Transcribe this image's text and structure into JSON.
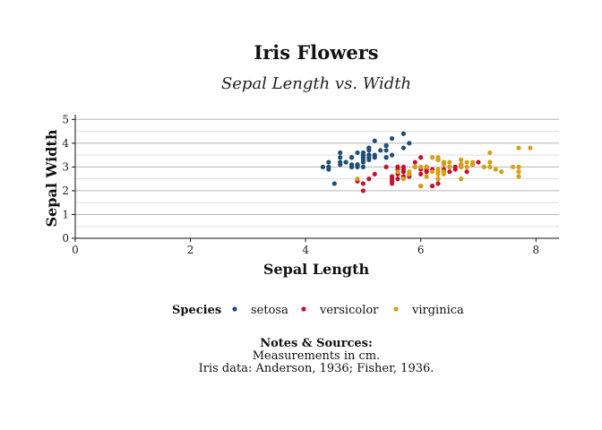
{
  "chart_data": {
    "type": "scatter",
    "title": "Iris Flowers",
    "subtitle": "Sepal Length vs. Width",
    "xlabel": "Sepal Length",
    "ylabel": "Sepal Width",
    "xlim": [
      0,
      8.4
    ],
    "ylim": [
      0,
      5.2
    ],
    "xticks": [
      "0",
      "2",
      "4",
      "6",
      "8"
    ],
    "yticks": [
      "0",
      "1",
      "2",
      "3",
      "4",
      "5"
    ],
    "grid": true,
    "legend_title": "Species",
    "legend_position": "bottom",
    "series": [
      {
        "name": "setosa",
        "color": "#1f4e79",
        "points": [
          [
            5.1,
            3.5
          ],
          [
            4.9,
            3.0
          ],
          [
            4.7,
            3.2
          ],
          [
            4.6,
            3.1
          ],
          [
            5.0,
            3.6
          ],
          [
            5.4,
            3.9
          ],
          [
            4.6,
            3.4
          ],
          [
            5.0,
            3.4
          ],
          [
            4.4,
            2.9
          ],
          [
            4.9,
            3.1
          ],
          [
            5.4,
            3.7
          ],
          [
            4.8,
            3.4
          ],
          [
            4.8,
            3.0
          ],
          [
            4.3,
            3.0
          ],
          [
            5.8,
            4.0
          ],
          [
            5.7,
            4.4
          ],
          [
            5.4,
            3.9
          ],
          [
            5.1,
            3.5
          ],
          [
            5.7,
            3.8
          ],
          [
            5.1,
            3.8
          ],
          [
            5.4,
            3.4
          ],
          [
            5.1,
            3.7
          ],
          [
            4.6,
            3.6
          ],
          [
            5.1,
            3.3
          ],
          [
            4.8,
            3.4
          ],
          [
            5.0,
            3.0
          ],
          [
            5.0,
            3.4
          ],
          [
            5.2,
            3.5
          ],
          [
            5.2,
            3.4
          ],
          [
            4.7,
            3.2
          ],
          [
            4.8,
            3.1
          ],
          [
            5.4,
            3.4
          ],
          [
            5.2,
            4.1
          ],
          [
            5.5,
            4.2
          ],
          [
            4.9,
            3.1
          ],
          [
            5.0,
            3.2
          ],
          [
            5.5,
            3.5
          ],
          [
            4.9,
            3.6
          ],
          [
            4.4,
            3.0
          ],
          [
            5.1,
            3.4
          ],
          [
            5.0,
            3.5
          ],
          [
            4.5,
            2.3
          ],
          [
            4.4,
            3.2
          ],
          [
            5.0,
            3.5
          ],
          [
            5.1,
            3.8
          ],
          [
            4.8,
            3.0
          ],
          [
            5.1,
            3.8
          ],
          [
            4.6,
            3.2
          ],
          [
            5.3,
            3.7
          ],
          [
            5.0,
            3.3
          ]
        ]
      },
      {
        "name": "versicolor",
        "color": "#c8102e",
        "points": [
          [
            7.0,
            3.2
          ],
          [
            6.4,
            3.2
          ],
          [
            6.9,
            3.1
          ],
          [
            5.5,
            2.3
          ],
          [
            6.5,
            2.8
          ],
          [
            5.7,
            2.8
          ],
          [
            6.3,
            3.3
          ],
          [
            4.9,
            2.4
          ],
          [
            6.6,
            2.9
          ],
          [
            5.2,
            2.7
          ],
          [
            5.0,
            2.0
          ],
          [
            5.9,
            3.0
          ],
          [
            6.0,
            2.2
          ],
          [
            6.1,
            2.9
          ],
          [
            5.6,
            2.9
          ],
          [
            6.7,
            3.1
          ],
          [
            5.6,
            3.0
          ],
          [
            5.8,
            2.7
          ],
          [
            6.2,
            2.2
          ],
          [
            5.6,
            2.5
          ],
          [
            5.9,
            3.2
          ],
          [
            6.1,
            2.8
          ],
          [
            6.3,
            2.5
          ],
          [
            6.1,
            2.8
          ],
          [
            6.4,
            2.9
          ],
          [
            6.6,
            3.0
          ],
          [
            6.8,
            2.8
          ],
          [
            6.7,
            3.0
          ],
          [
            6.0,
            2.9
          ],
          [
            5.7,
            2.6
          ],
          [
            5.5,
            2.4
          ],
          [
            5.5,
            2.4
          ],
          [
            5.8,
            2.7
          ],
          [
            6.0,
            2.7
          ],
          [
            5.4,
            3.0
          ],
          [
            6.0,
            3.4
          ],
          [
            6.7,
            3.1
          ],
          [
            6.3,
            2.3
          ],
          [
            5.6,
            3.0
          ],
          [
            5.5,
            2.5
          ],
          [
            5.5,
            2.6
          ],
          [
            6.1,
            3.0
          ],
          [
            5.8,
            2.6
          ],
          [
            5.0,
            2.3
          ],
          [
            5.6,
            2.7
          ],
          [
            5.7,
            3.0
          ],
          [
            5.7,
            2.9
          ],
          [
            6.2,
            2.9
          ],
          [
            5.1,
            2.5
          ],
          [
            5.7,
            2.8
          ]
        ]
      },
      {
        "name": "virginica",
        "color": "#d4a017",
        "points": [
          [
            6.3,
            3.3
          ],
          [
            5.8,
            2.7
          ],
          [
            7.1,
            3.0
          ],
          [
            6.3,
            2.9
          ],
          [
            6.5,
            3.0
          ],
          [
            7.6,
            3.0
          ],
          [
            4.9,
            2.5
          ],
          [
            7.3,
            2.9
          ],
          [
            6.7,
            2.5
          ],
          [
            7.2,
            3.6
          ],
          [
            6.5,
            3.2
          ],
          [
            6.4,
            2.7
          ],
          [
            6.8,
            3.0
          ],
          [
            5.7,
            2.5
          ],
          [
            5.8,
            2.8
          ],
          [
            6.4,
            3.2
          ],
          [
            6.5,
            3.0
          ],
          [
            7.7,
            3.8
          ],
          [
            7.7,
            2.6
          ],
          [
            6.0,
            2.2
          ],
          [
            6.9,
            3.2
          ],
          [
            5.6,
            2.8
          ],
          [
            7.7,
            2.8
          ],
          [
            6.3,
            2.7
          ],
          [
            6.7,
            3.3
          ],
          [
            7.2,
            3.2
          ],
          [
            6.2,
            2.8
          ],
          [
            6.1,
            3.0
          ],
          [
            6.4,
            2.8
          ],
          [
            7.2,
            3.0
          ],
          [
            7.4,
            2.8
          ],
          [
            7.9,
            3.8
          ],
          [
            6.4,
            2.8
          ],
          [
            6.3,
            2.8
          ],
          [
            6.1,
            2.6
          ],
          [
            7.7,
            3.0
          ],
          [
            6.3,
            3.4
          ],
          [
            6.4,
            3.1
          ],
          [
            6.0,
            3.0
          ],
          [
            6.9,
            3.1
          ],
          [
            6.7,
            3.1
          ],
          [
            6.9,
            3.1
          ],
          [
            5.8,
            2.7
          ],
          [
            6.8,
            3.2
          ],
          [
            6.7,
            3.3
          ],
          [
            6.7,
            3.0
          ],
          [
            6.3,
            2.5
          ],
          [
            6.5,
            3.0
          ],
          [
            6.2,
            3.4
          ],
          [
            5.9,
            3.0
          ]
        ]
      }
    ]
  },
  "notes": {
    "title": "Notes & Sources:",
    "line1": "Measurements in cm.",
    "line2": "Iris data: Anderson, 1936; Fisher, 1936."
  }
}
